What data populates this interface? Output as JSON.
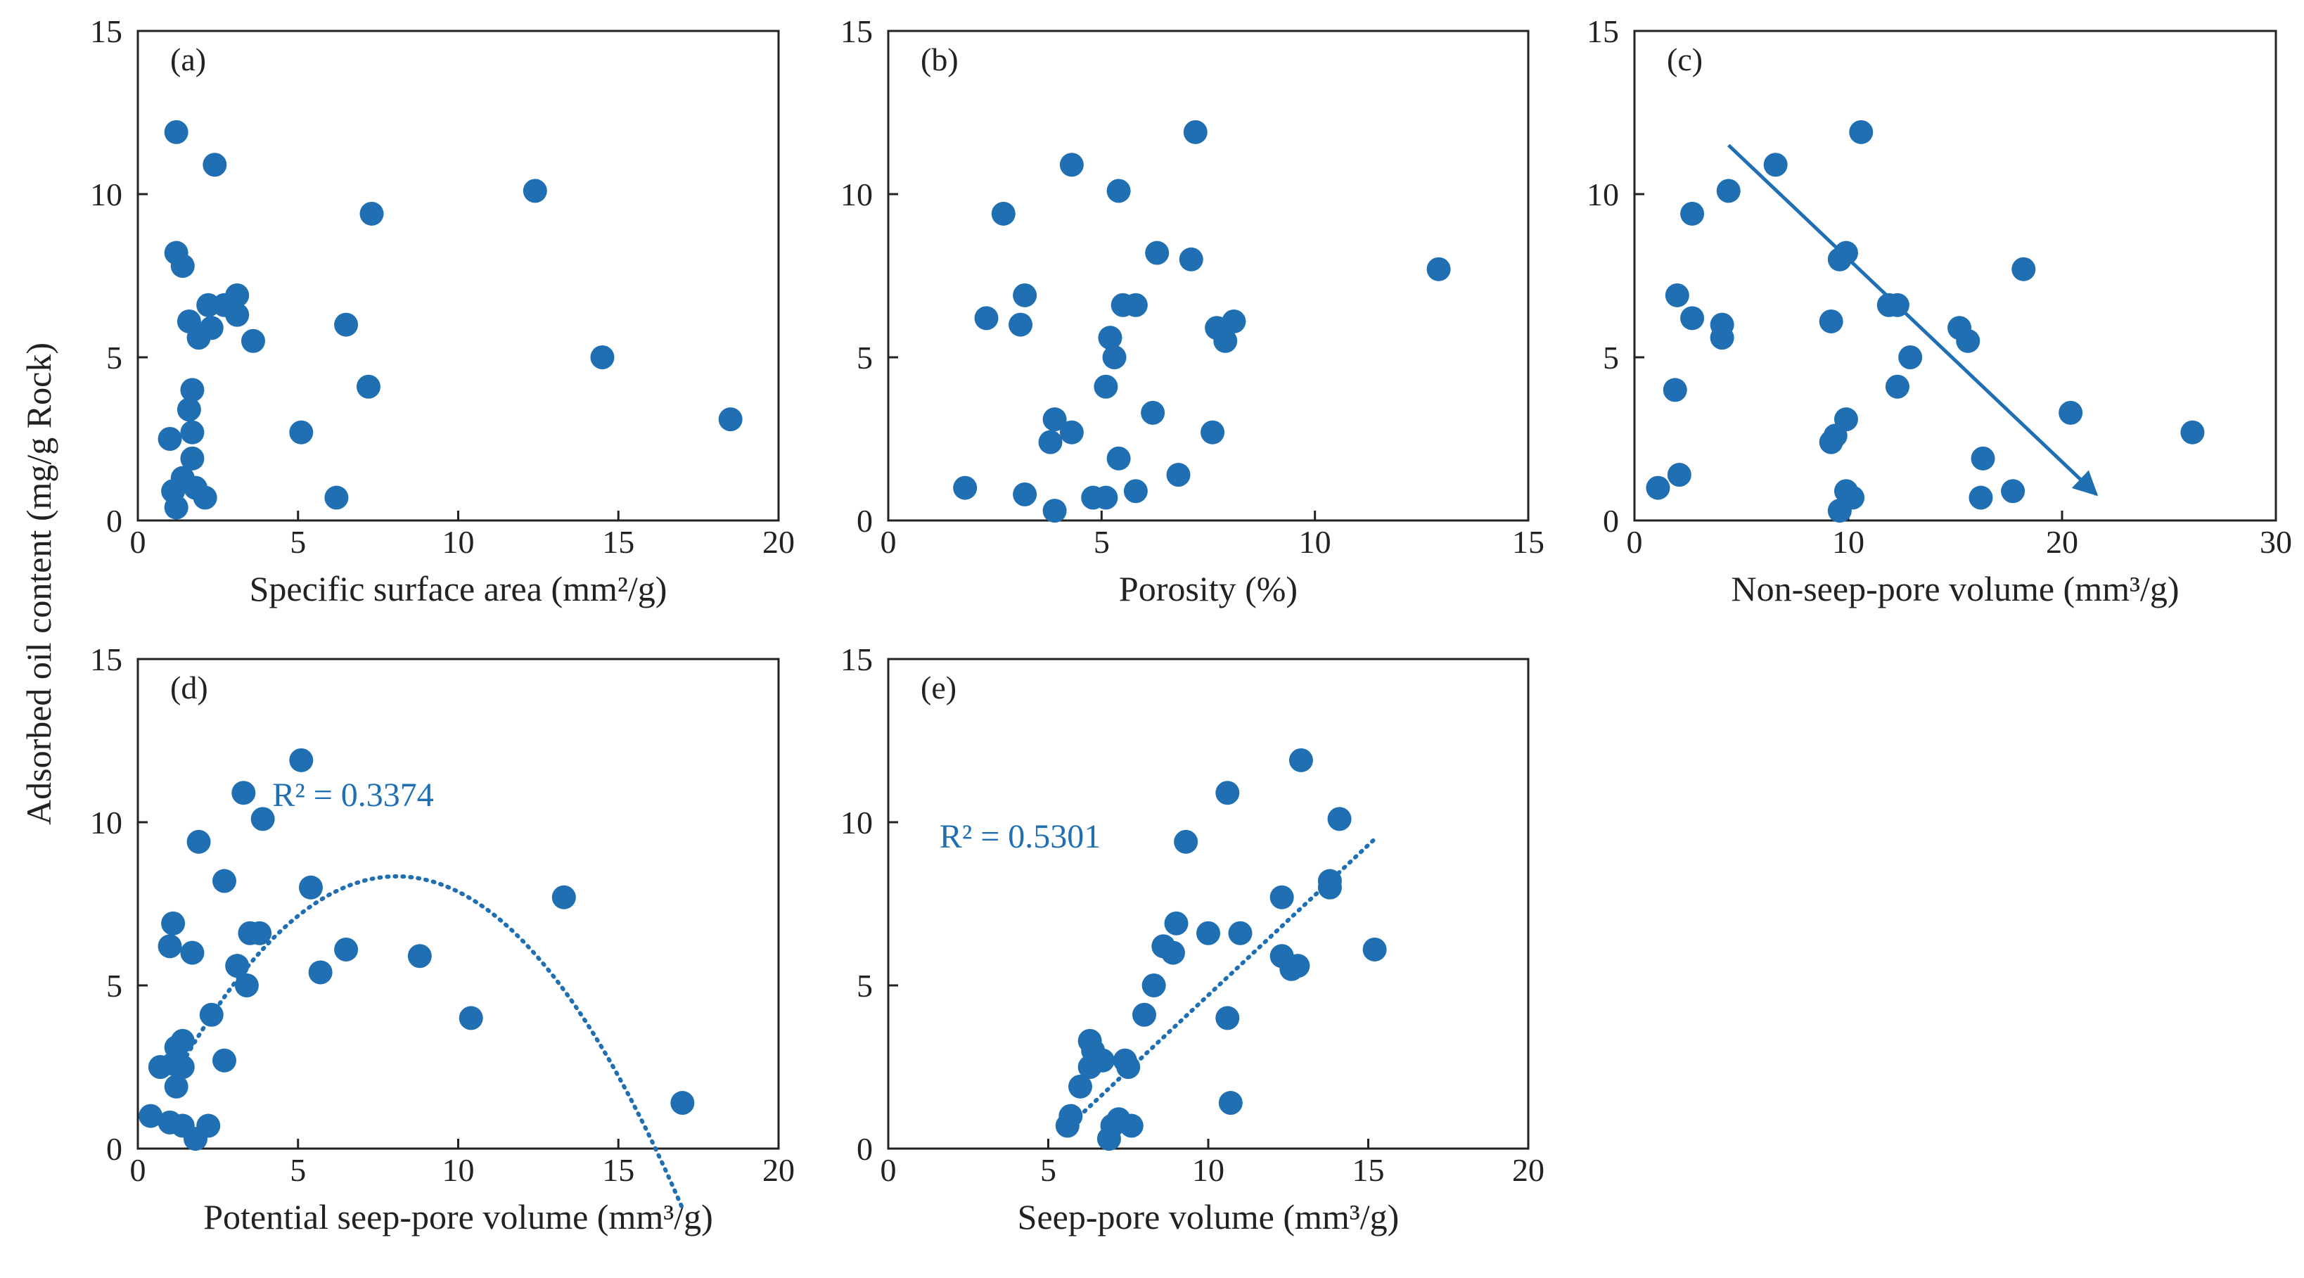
{
  "figure": {
    "ylabel": "Adsorbed oil content (mg/g Rock)",
    "marker_color": "#1f6fb2",
    "trend_color": "#1f6fb2"
  },
  "chart_data": [
    {
      "type": "scatter",
      "panel": "(a)",
      "xlabel": "Specific surface area (mm²/g)",
      "ylabel": "Adsorbed oil content (mg/g Rock)",
      "xlim": [
        0,
        20
      ],
      "ylim": [
        0,
        15
      ],
      "xticks": [
        "0",
        "5",
        "10",
        "15",
        "20"
      ],
      "yticks": [
        "0",
        "5",
        "10",
        "15"
      ],
      "points": [
        [
          1.2,
          11.9
        ],
        [
          2.4,
          10.9
        ],
        [
          12.4,
          10.1
        ],
        [
          7.3,
          9.4
        ],
        [
          1.2,
          8.2
        ],
        [
          1.4,
          7.8
        ],
        [
          3.1,
          6.9
        ],
        [
          2.2,
          6.6
        ],
        [
          2.7,
          6.6
        ],
        [
          3.1,
          6.3
        ],
        [
          1.6,
          6.1
        ],
        [
          6.5,
          6.0
        ],
        [
          2.3,
          5.9
        ],
        [
          1.9,
          5.6
        ],
        [
          3.6,
          5.5
        ],
        [
          14.5,
          5.0
        ],
        [
          7.2,
          4.1
        ],
        [
          1.7,
          4.0
        ],
        [
          1.6,
          3.4
        ],
        [
          18.5,
          3.1
        ],
        [
          5.1,
          2.7
        ],
        [
          1.7,
          2.7
        ],
        [
          1.0,
          2.5
        ],
        [
          1.7,
          1.9
        ],
        [
          1.4,
          1.3
        ],
        [
          1.8,
          1.0
        ],
        [
          1.1,
          0.9
        ],
        [
          6.2,
          0.7
        ],
        [
          2.1,
          0.7
        ],
        [
          1.2,
          0.4
        ]
      ]
    },
    {
      "type": "scatter",
      "panel": "(b)",
      "xlabel": "Porosity (%)",
      "ylabel": "",
      "xlim": [
        0,
        15
      ],
      "ylim": [
        0,
        15
      ],
      "xticks": [
        "0",
        "5",
        "10",
        "15"
      ],
      "yticks": [
        "0",
        "5",
        "10",
        "15"
      ],
      "points": [
        [
          7.2,
          11.9
        ],
        [
          4.3,
          10.9
        ],
        [
          5.4,
          10.1
        ],
        [
          2.7,
          9.4
        ],
        [
          6.3,
          8.2
        ],
        [
          7.1,
          8.0
        ],
        [
          12.9,
          7.7
        ],
        [
          3.2,
          6.9
        ],
        [
          5.5,
          6.6
        ],
        [
          5.8,
          6.6
        ],
        [
          2.3,
          6.2
        ],
        [
          8.1,
          6.1
        ],
        [
          3.1,
          6.0
        ],
        [
          7.7,
          5.9
        ],
        [
          5.2,
          5.6
        ],
        [
          7.9,
          5.5
        ],
        [
          5.3,
          5.0
        ],
        [
          5.1,
          4.1
        ],
        [
          6.2,
          3.3
        ],
        [
          3.9,
          3.1
        ],
        [
          4.3,
          2.7
        ],
        [
          7.6,
          2.7
        ],
        [
          3.8,
          2.4
        ],
        [
          5.4,
          1.9
        ],
        [
          6.8,
          1.4
        ],
        [
          1.8,
          1.0
        ],
        [
          3.2,
          0.8
        ],
        [
          5.8,
          0.9
        ],
        [
          4.8,
          0.7
        ],
        [
          5.1,
          0.7
        ],
        [
          3.9,
          0.3
        ]
      ]
    },
    {
      "type": "scatter",
      "panel": "(c)",
      "xlabel": "Non-seep-pore volume (mm³/g)",
      "ylabel": "",
      "xlim": [
        0,
        30
      ],
      "ylim": [
        0,
        15
      ],
      "xticks": [
        "0",
        "10",
        "20",
        "30"
      ],
      "yticks": [
        "0",
        "5",
        "10",
        "15"
      ],
      "points": [
        [
          10.6,
          11.9
        ],
        [
          6.6,
          10.9
        ],
        [
          4.4,
          10.1
        ],
        [
          2.7,
          9.4
        ],
        [
          9.9,
          8.2
        ],
        [
          9.6,
          8.0
        ],
        [
          18.2,
          7.7
        ],
        [
          2.0,
          6.9
        ],
        [
          11.9,
          6.6
        ],
        [
          12.3,
          6.6
        ],
        [
          2.7,
          6.2
        ],
        [
          9.2,
          6.1
        ],
        [
          4.1,
          6.0
        ],
        [
          15.2,
          5.9
        ],
        [
          4.1,
          5.6
        ],
        [
          15.6,
          5.5
        ],
        [
          12.9,
          5.0
        ],
        [
          12.3,
          4.1
        ],
        [
          1.9,
          4.0
        ],
        [
          20.4,
          3.3
        ],
        [
          9.9,
          3.1
        ],
        [
          26.1,
          2.7
        ],
        [
          9.4,
          2.6
        ],
        [
          9.2,
          2.4
        ],
        [
          16.3,
          1.9
        ],
        [
          2.1,
          1.4
        ],
        [
          1.1,
          1.0
        ],
        [
          17.7,
          0.9
        ],
        [
          9.9,
          0.9
        ],
        [
          16.2,
          0.7
        ],
        [
          10.2,
          0.7
        ],
        [
          9.6,
          0.3
        ]
      ],
      "arrow": {
        "from": [
          4.4,
          11.5
        ],
        "to": [
          21.6,
          0.8
        ]
      }
    },
    {
      "type": "scatter",
      "panel": "(d)",
      "xlabel": "Potential seep-pore volume (mm³/g)",
      "ylabel": "",
      "xlim": [
        0,
        20
      ],
      "ylim": [
        0,
        15
      ],
      "xticks": [
        "0",
        "5",
        "10",
        "15",
        "20"
      ],
      "yticks": [
        "0",
        "5",
        "10",
        "15"
      ],
      "r2_text": "R² = 0.3374",
      "points": [
        [
          5.1,
          11.9
        ],
        [
          3.3,
          10.9
        ],
        [
          3.9,
          10.1
        ],
        [
          1.9,
          9.4
        ],
        [
          2.7,
          8.2
        ],
        [
          5.4,
          8.0
        ],
        [
          13.3,
          7.7
        ],
        [
          1.1,
          6.9
        ],
        [
          3.5,
          6.6
        ],
        [
          3.8,
          6.6
        ],
        [
          1.0,
          6.2
        ],
        [
          6.5,
          6.1
        ],
        [
          1.7,
          6.0
        ],
        [
          8.8,
          5.9
        ],
        [
          3.1,
          5.6
        ],
        [
          5.7,
          5.4
        ],
        [
          3.4,
          5.0
        ],
        [
          10.4,
          4.0
        ],
        [
          2.3,
          4.1
        ],
        [
          1.4,
          3.3
        ],
        [
          1.2,
          3.1
        ],
        [
          2.7,
          2.7
        ],
        [
          1.1,
          2.6
        ],
        [
          1.4,
          2.5
        ],
        [
          0.7,
          2.5
        ],
        [
          1.2,
          1.9
        ],
        [
          17.0,
          1.4
        ],
        [
          0.4,
          1.0
        ],
        [
          1.0,
          0.8
        ],
        [
          1.4,
          0.7
        ],
        [
          2.2,
          0.7
        ],
        [
          1.8,
          0.3
        ]
      ],
      "trend": {
        "kind": "quadratic",
        "a": -0.1278,
        "b": 2.065,
        "c": 0.0,
        "x_range": [
          1.4,
          17.0
        ]
      }
    },
    {
      "type": "scatter",
      "panel": "(e)",
      "xlabel": "Seep-pore volume (mm³/g)",
      "ylabel": "",
      "xlim": [
        0,
        20
      ],
      "ylim": [
        0,
        15
      ],
      "xticks": [
        "0",
        "5",
        "10",
        "15",
        "20"
      ],
      "yticks": [
        "0",
        "5",
        "10",
        "15"
      ],
      "r2_text": "R² = 0.5301",
      "points": [
        [
          12.9,
          11.9
        ],
        [
          10.6,
          10.9
        ],
        [
          14.1,
          10.1
        ],
        [
          9.3,
          9.4
        ],
        [
          13.8,
          8.2
        ],
        [
          13.8,
          8.0
        ],
        [
          12.3,
          7.7
        ],
        [
          9.0,
          6.9
        ],
        [
          10.0,
          6.6
        ],
        [
          11.0,
          6.6
        ],
        [
          8.6,
          6.2
        ],
        [
          15.2,
          6.1
        ],
        [
          8.9,
          6.0
        ],
        [
          12.3,
          5.9
        ],
        [
          12.8,
          5.6
        ],
        [
          12.6,
          5.5
        ],
        [
          8.3,
          5.0
        ],
        [
          8.0,
          4.1
        ],
        [
          10.6,
          4.0
        ],
        [
          6.3,
          3.3
        ],
        [
          6.4,
          3.0
        ],
        [
          6.7,
          2.7
        ],
        [
          7.4,
          2.7
        ],
        [
          7.5,
          2.5
        ],
        [
          6.3,
          2.5
        ],
        [
          6.0,
          1.9
        ],
        [
          10.7,
          1.4
        ],
        [
          5.7,
          1.0
        ],
        [
          7.2,
          0.9
        ],
        [
          5.6,
          0.7
        ],
        [
          7.0,
          0.7
        ],
        [
          7.6,
          0.7
        ],
        [
          6.9,
          0.3
        ]
      ],
      "trend": {
        "kind": "linear",
        "slope": 0.92,
        "intercept": -4.5,
        "x_range": [
          5.6,
          15.2
        ]
      }
    }
  ]
}
